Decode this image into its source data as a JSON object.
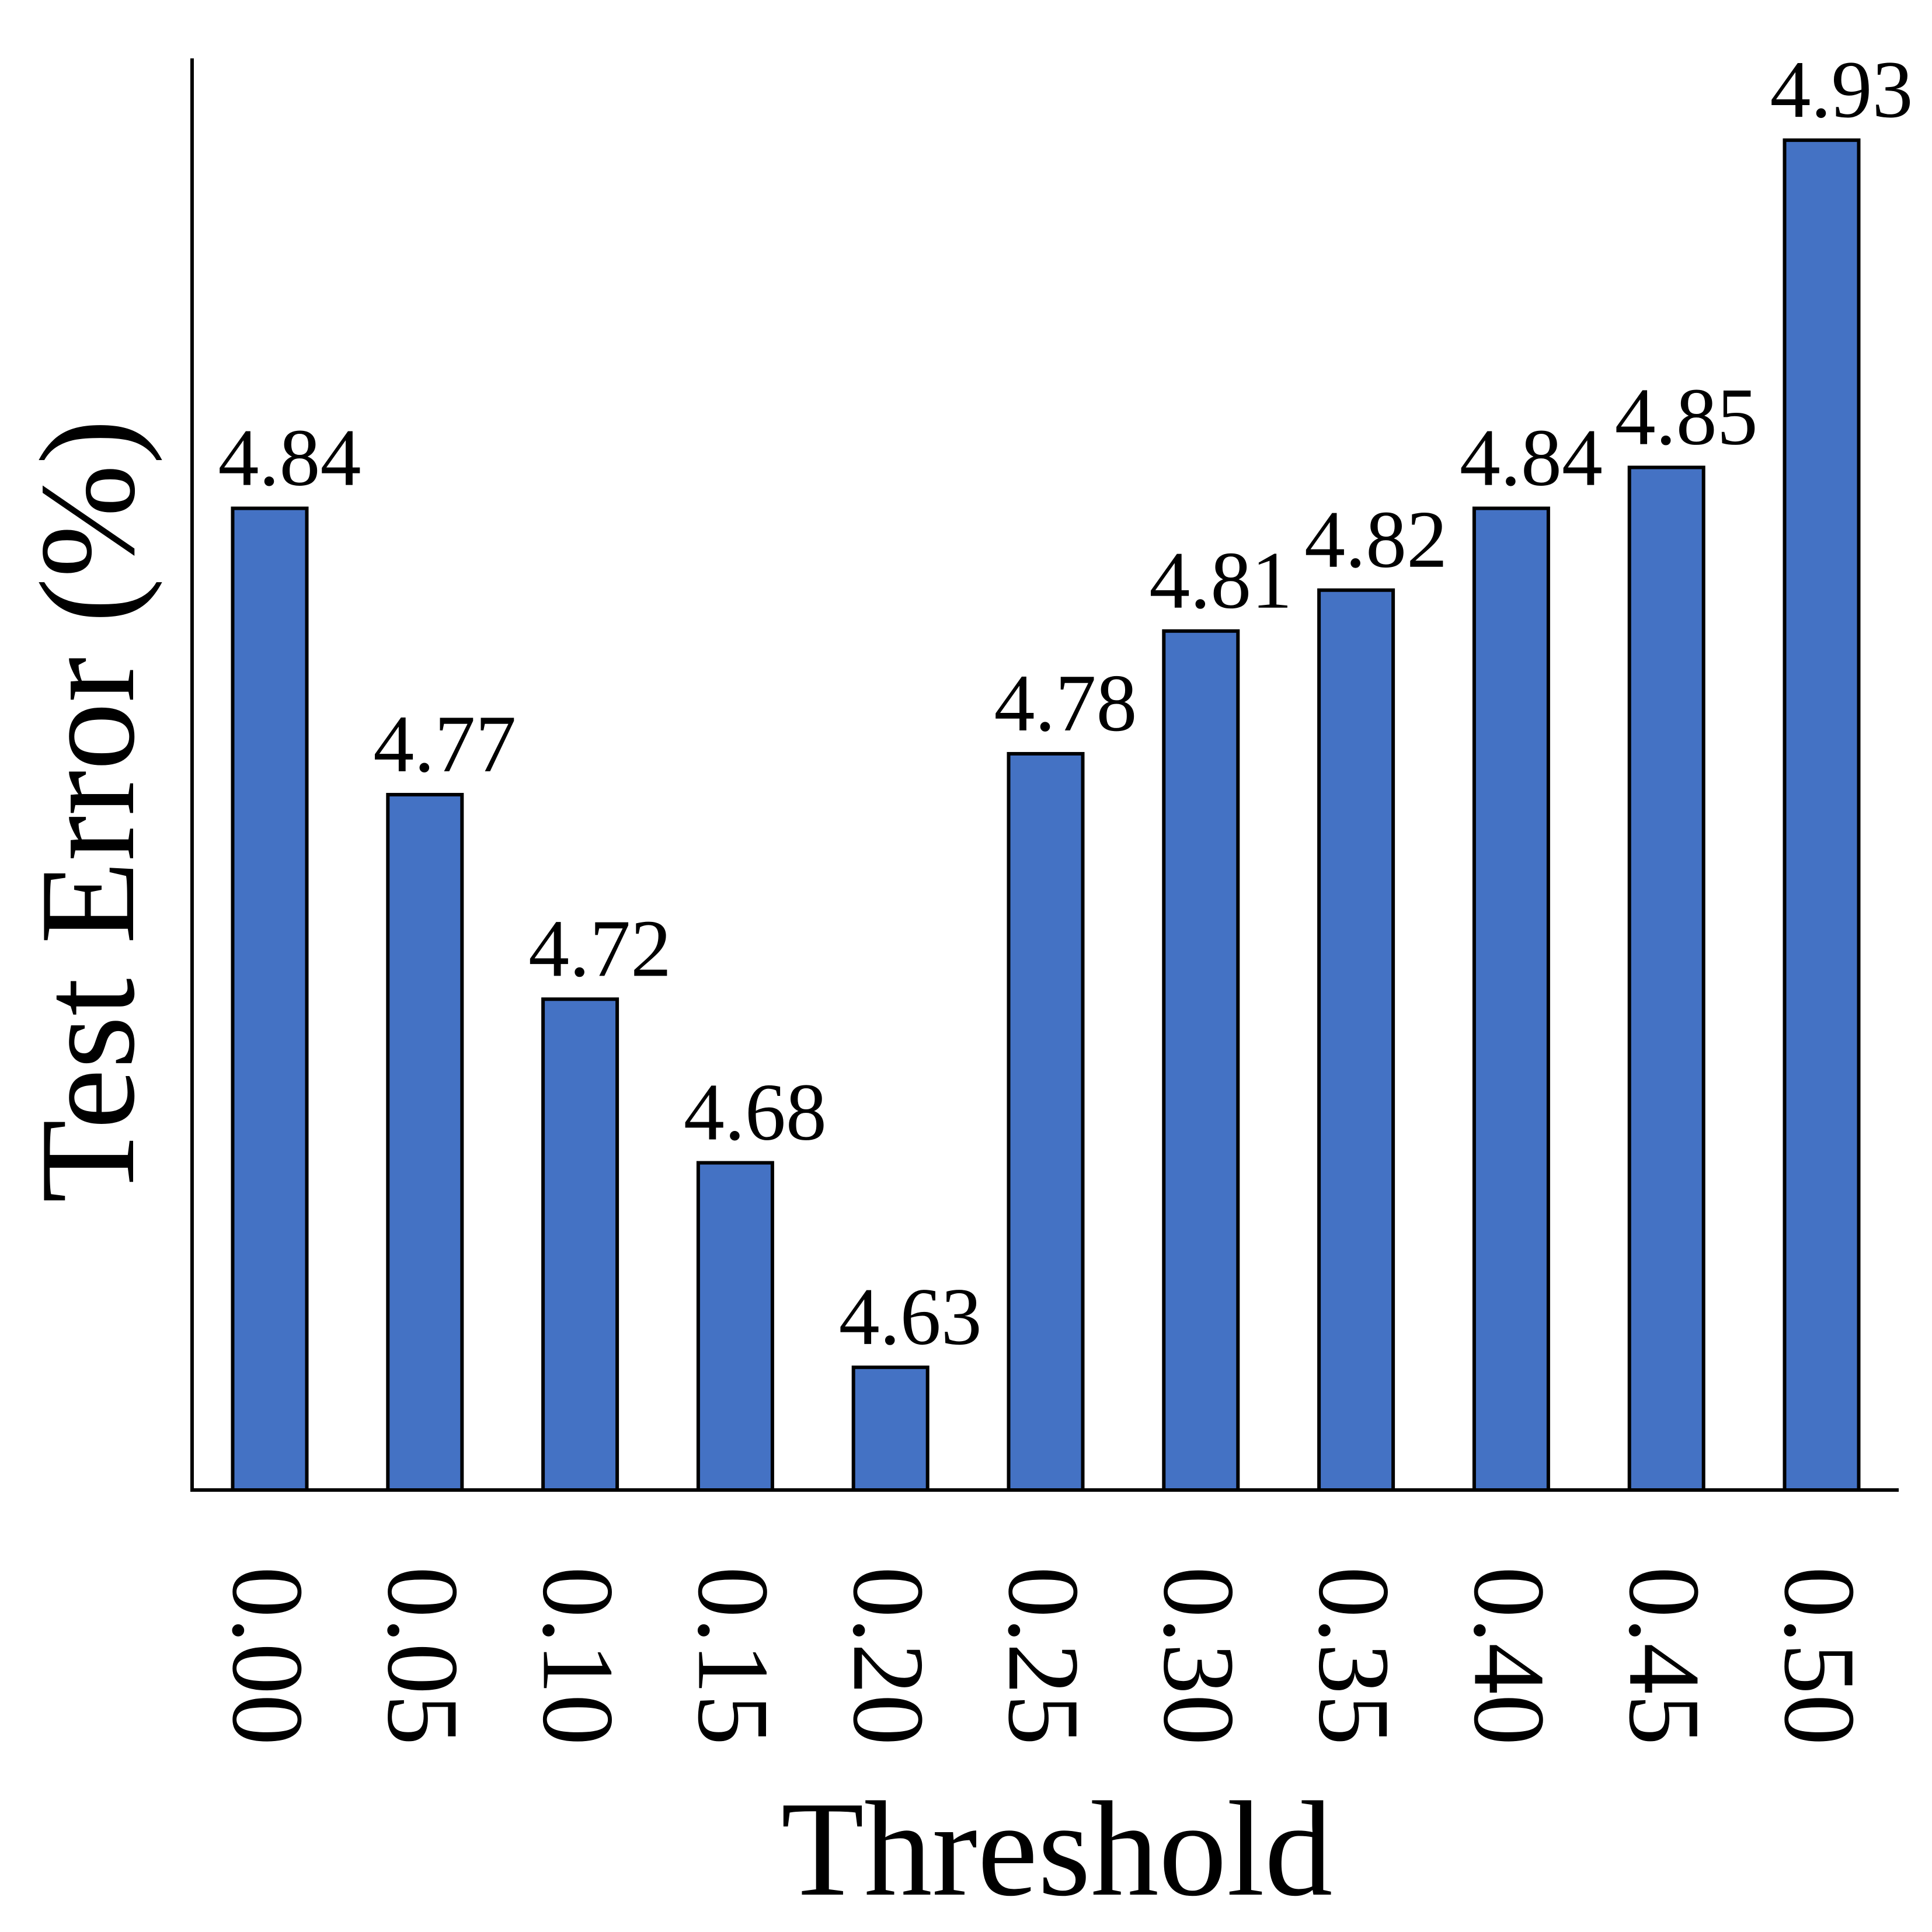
{
  "chart_data": {
    "type": "bar",
    "x_label": "Threshold",
    "y_label": "Test Error (%)",
    "categories": [
      "0.00",
      "0.05",
      "0.10",
      "0.15",
      "0.20",
      "0.25",
      "0.30",
      "0.35",
      "0.40",
      "0.45",
      "0.50"
    ],
    "values": [
      4.84,
      4.77,
      4.72,
      4.68,
      4.63,
      4.78,
      4.81,
      4.82,
      4.84,
      4.85,
      4.93
    ],
    "color": "#4472c4",
    "ylim": [
      4.6,
      4.95
    ]
  }
}
